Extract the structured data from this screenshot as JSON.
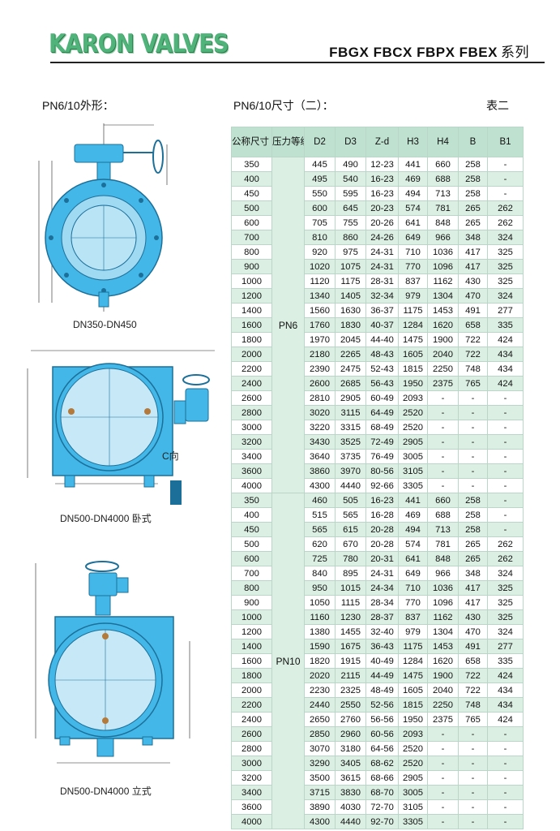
{
  "header": {
    "brand": "KARON VALVES",
    "series_models": "FBGX FBCX FBPX FBEX",
    "series_suffix": "系列"
  },
  "left": {
    "shape_title": "PN6/10外形：",
    "captions": [
      "DN350-DN450",
      "DN500-DN4000 卧式",
      "DN500-DN4000 立式"
    ],
    "c_view_label": "C向"
  },
  "table": {
    "title": "PN6/10尺寸（二）：",
    "table_no": "表二",
    "headers": [
      "公称尺寸（DN）",
      "压力等级",
      "D2",
      "D3",
      "Z-d",
      "H3",
      "H4",
      "B",
      "B1"
    ],
    "groups": [
      {
        "pressure": "PN6",
        "rows": [
          [
            "350",
            "445",
            "490",
            "12-23",
            "441",
            "660",
            "258",
            "-"
          ],
          [
            "400",
            "495",
            "540",
            "16-23",
            "469",
            "688",
            "258",
            "-"
          ],
          [
            "450",
            "550",
            "595",
            "16-23",
            "494",
            "713",
            "258",
            "-"
          ],
          [
            "500",
            "600",
            "645",
            "20-23",
            "574",
            "781",
            "265",
            "262"
          ],
          [
            "600",
            "705",
            "755",
            "20-26",
            "641",
            "848",
            "265",
            "262"
          ],
          [
            "700",
            "810",
            "860",
            "24-26",
            "649",
            "966",
            "348",
            "324"
          ],
          [
            "800",
            "920",
            "975",
            "24-31",
            "710",
            "1036",
            "417",
            "325"
          ],
          [
            "900",
            "1020",
            "1075",
            "24-31",
            "770",
            "1096",
            "417",
            "325"
          ],
          [
            "1000",
            "1120",
            "1175",
            "28-31",
            "837",
            "1162",
            "430",
            "325"
          ],
          [
            "1200",
            "1340",
            "1405",
            "32-34",
            "979",
            "1304",
            "470",
            "324"
          ],
          [
            "1400",
            "1560",
            "1630",
            "36-37",
            "1175",
            "1453",
            "491",
            "277"
          ],
          [
            "1600",
            "1760",
            "1830",
            "40-37",
            "1284",
            "1620",
            "658",
            "335"
          ],
          [
            "1800",
            "1970",
            "2045",
            "44-40",
            "1475",
            "1900",
            "722",
            "424"
          ],
          [
            "2000",
            "2180",
            "2265",
            "48-43",
            "1605",
            "2040",
            "722",
            "434"
          ],
          [
            "2200",
            "2390",
            "2475",
            "52-43",
            "1815",
            "2250",
            "748",
            "434"
          ],
          [
            "2400",
            "2600",
            "2685",
            "56-43",
            "1950",
            "2375",
            "765",
            "424"
          ],
          [
            "2600",
            "2810",
            "2905",
            "60-49",
            "2093",
            "-",
            "-",
            "-"
          ],
          [
            "2800",
            "3020",
            "3115",
            "64-49",
            "2520",
            "-",
            "-",
            "-"
          ],
          [
            "3000",
            "3220",
            "3315",
            "68-49",
            "2520",
            "-",
            "-",
            "-"
          ],
          [
            "3200",
            "3430",
            "3525",
            "72-49",
            "2905",
            "-",
            "-",
            "-"
          ],
          [
            "3400",
            "3640",
            "3735",
            "76-49",
            "3005",
            "-",
            "-",
            "-"
          ],
          [
            "3600",
            "3860",
            "3970",
            "80-56",
            "3105",
            "-",
            "-",
            "-"
          ],
          [
            "4000",
            "4300",
            "4440",
            "92-66",
            "3305",
            "-",
            "-",
            "-"
          ]
        ]
      },
      {
        "pressure": "PN10",
        "rows": [
          [
            "350",
            "460",
            "505",
            "16-23",
            "441",
            "660",
            "258",
            "-"
          ],
          [
            "400",
            "515",
            "565",
            "16-28",
            "469",
            "688",
            "258",
            "-"
          ],
          [
            "450",
            "565",
            "615",
            "20-28",
            "494",
            "713",
            "258",
            "-"
          ],
          [
            "500",
            "620",
            "670",
            "20-28",
            "574",
            "781",
            "265",
            "262"
          ],
          [
            "600",
            "725",
            "780",
            "20-31",
            "641",
            "848",
            "265",
            "262"
          ],
          [
            "700",
            "840",
            "895",
            "24-31",
            "649",
            "966",
            "348",
            "324"
          ],
          [
            "800",
            "950",
            "1015",
            "24-34",
            "710",
            "1036",
            "417",
            "325"
          ],
          [
            "900",
            "1050",
            "1115",
            "28-34",
            "770",
            "1096",
            "417",
            "325"
          ],
          [
            "1000",
            "1160",
            "1230",
            "28-37",
            "837",
            "1162",
            "430",
            "325"
          ],
          [
            "1200",
            "1380",
            "1455",
            "32-40",
            "979",
            "1304",
            "470",
            "324"
          ],
          [
            "1400",
            "1590",
            "1675",
            "36-43",
            "1175",
            "1453",
            "491",
            "277"
          ],
          [
            "1600",
            "1820",
            "1915",
            "40-49",
            "1284",
            "1620",
            "658",
            "335"
          ],
          [
            "1800",
            "2020",
            "2115",
            "44-49",
            "1475",
            "1900",
            "722",
            "424"
          ],
          [
            "2000",
            "2230",
            "2325",
            "48-49",
            "1605",
            "2040",
            "722",
            "434"
          ],
          [
            "2200",
            "2440",
            "2550",
            "52-56",
            "1815",
            "2250",
            "748",
            "434"
          ],
          [
            "2400",
            "2650",
            "2760",
            "56-56",
            "1950",
            "2375",
            "765",
            "424"
          ],
          [
            "2600",
            "2850",
            "2960",
            "60-56",
            "2093",
            "-",
            "-",
            "-"
          ],
          [
            "2800",
            "3070",
            "3180",
            "64-56",
            "2520",
            "-",
            "-",
            "-"
          ],
          [
            "3000",
            "3290",
            "3405",
            "68-62",
            "2520",
            "-",
            "-",
            "-"
          ],
          [
            "3200",
            "3500",
            "3615",
            "68-66",
            "2905",
            "-",
            "-",
            "-"
          ],
          [
            "3400",
            "3715",
            "3830",
            "68-70",
            "3005",
            "-",
            "-",
            "-"
          ],
          [
            "3600",
            "3890",
            "4030",
            "72-70",
            "3105",
            "-",
            "-",
            "-"
          ],
          [
            "4000",
            "4300",
            "4440",
            "92-70",
            "3305",
            "-",
            "-",
            "-"
          ]
        ]
      }
    ]
  },
  "colors": {
    "valve_body": "#43b8e8",
    "valve_dark": "#1c6f99",
    "brand_green": "#4fb37a",
    "table_header": "#bfe1d0",
    "table_stripe": "#dbefe3"
  }
}
